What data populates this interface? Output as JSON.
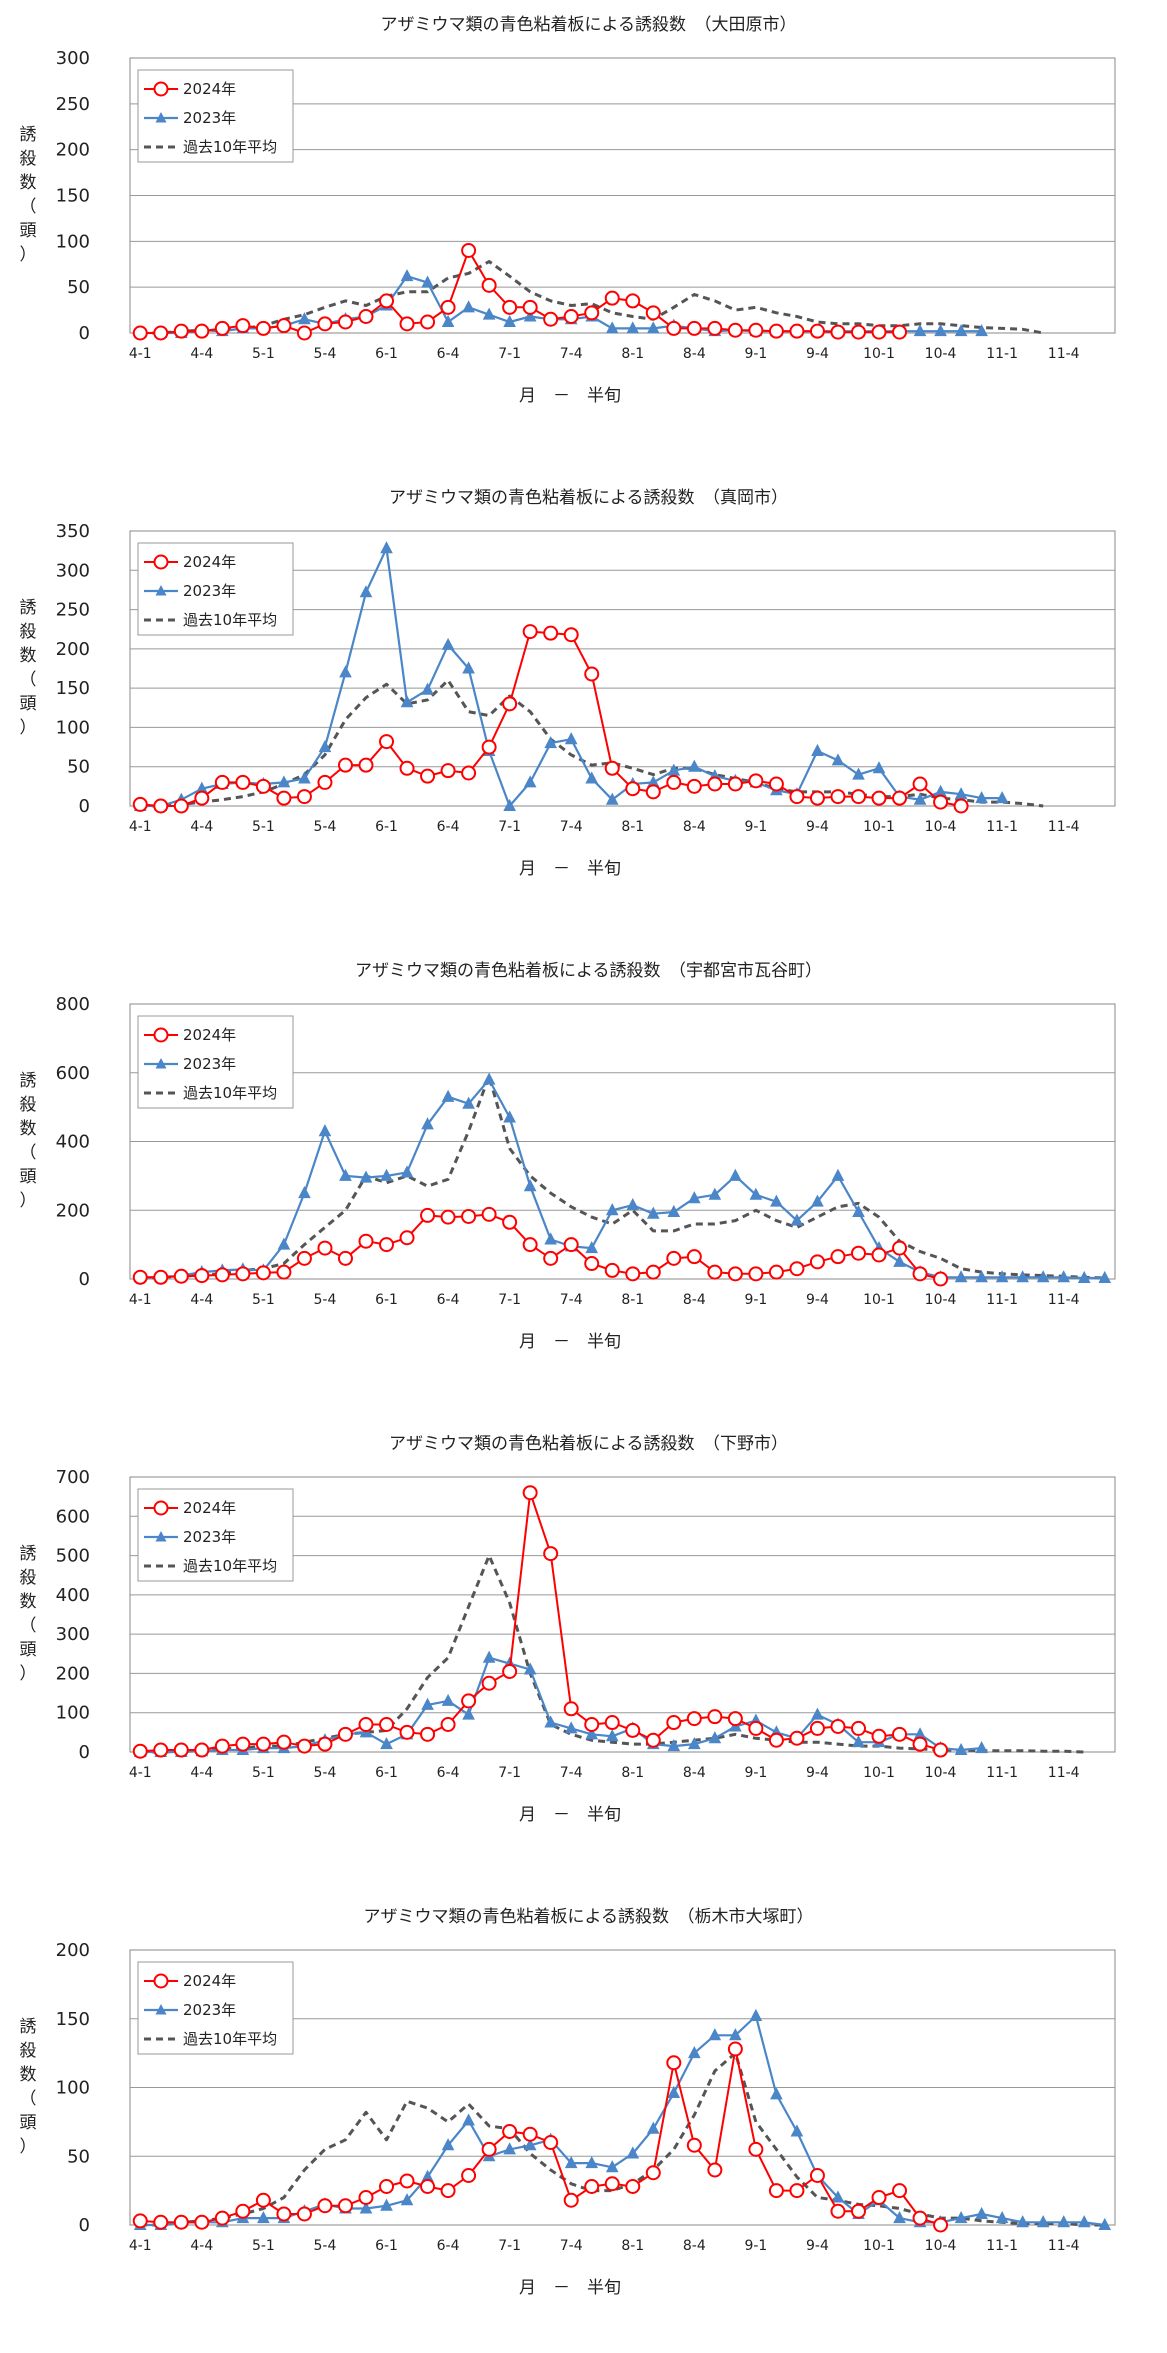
{
  "colors": {
    "y2024": "#ff0000",
    "y2023": "#4a86c8",
    "avg": "#555555",
    "grid": "#999999"
  },
  "chart_data": [
    {
      "type": "line",
      "title": "アザミウマ類の青色粘着板による誘殺数　（大田原市）",
      "xlabel": "月　－　半旬",
      "ylabel": [
        "誘",
        "殺",
        "数",
        "（",
        "頭",
        "）"
      ],
      "ylim": [
        0,
        300
      ],
      "yticks": [
        0,
        50,
        100,
        150,
        200,
        250,
        300
      ],
      "x_tick_labels": [
        "4-1",
        "4-4",
        "5-1",
        "5-4",
        "6-1",
        "6-4",
        "7-1",
        "7-4",
        "8-1",
        "8-4",
        "9-1",
        "9-4",
        "10-1",
        "10-4",
        "11-1",
        "11-4"
      ],
      "n_points": 48,
      "legend": "top-left",
      "series": [
        {
          "name": "2024年",
          "values": [
            0,
            0,
            2,
            2,
            5,
            8,
            5,
            8,
            0,
            10,
            12,
            18,
            35,
            10,
            12,
            28,
            90,
            52,
            28,
            28,
            15,
            18,
            22,
            38,
            35,
            22,
            5,
            5,
            5,
            3,
            3,
            2,
            2,
            2,
            1,
            1,
            1,
            1
          ]
        },
        {
          "name": "2023年",
          "values": [
            0,
            0,
            0,
            3,
            2,
            5,
            5,
            8,
            15,
            10,
            15,
            18,
            30,
            62,
            55,
            12,
            28,
            20,
            12,
            18,
            15,
            15,
            18,
            5,
            5,
            5,
            8,
            5,
            2,
            3,
            2,
            2,
            2,
            2,
            2,
            2,
            2,
            2,
            2,
            2,
            2,
            2
          ]
        },
        {
          "name": "過去10年平均",
          "values": [
            0,
            0,
            2,
            3,
            3,
            5,
            8,
            15,
            20,
            28,
            35,
            30,
            40,
            45,
            45,
            60,
            65,
            78,
            62,
            45,
            35,
            30,
            32,
            22,
            18,
            15,
            28,
            42,
            35,
            25,
            28,
            22,
            18,
            12,
            10,
            10,
            8,
            8,
            10,
            10,
            8,
            6,
            5,
            4,
            0
          ]
        }
      ]
    },
    {
      "type": "line",
      "title": "アザミウマ類の青色粘着板による誘殺数　（真岡市）",
      "xlabel": "月　－　半旬",
      "ylabel": [
        "誘",
        "殺",
        "数",
        "（",
        "頭",
        "）"
      ],
      "ylim": [
        0,
        350
      ],
      "yticks": [
        0,
        50,
        100,
        150,
        200,
        250,
        300,
        350
      ],
      "x_tick_labels": [
        "4-1",
        "4-4",
        "5-1",
        "5-4",
        "6-1",
        "6-4",
        "7-1",
        "7-4",
        "8-1",
        "8-4",
        "9-1",
        "9-4",
        "10-1",
        "10-4",
        "11-1",
        "11-4"
      ],
      "n_points": 48,
      "legend": "top-left",
      "series": [
        {
          "name": "2024年",
          "values": [
            2,
            0,
            0,
            10,
            30,
            30,
            25,
            10,
            12,
            30,
            52,
            52,
            82,
            48,
            38,
            45,
            42,
            75,
            130,
            222,
            220,
            218,
            168,
            48,
            22,
            18,
            30,
            25,
            28,
            28,
            32,
            28,
            12,
            10,
            12,
            12,
            10,
            10,
            28,
            5,
            0
          ]
        },
        {
          "name": "2023年",
          "values": [
            0,
            0,
            8,
            22,
            28,
            30,
            28,
            30,
            35,
            75,
            170,
            272,
            328,
            132,
            148,
            205,
            175,
            70,
            0,
            30,
            80,
            85,
            35,
            8,
            28,
            30,
            45,
            50,
            38,
            32,
            30,
            20,
            15,
            70,
            58,
            40,
            48,
            12,
            8,
            18,
            15,
            10,
            10
          ]
        },
        {
          "name": "過去10年平均",
          "values": [
            0,
            0,
            2,
            5,
            8,
            12,
            18,
            28,
            40,
            65,
            110,
            138,
            155,
            130,
            135,
            160,
            120,
            115,
            140,
            120,
            85,
            65,
            52,
            55,
            48,
            40,
            48,
            48,
            40,
            35,
            30,
            22,
            18,
            18,
            18,
            15,
            12,
            12,
            15,
            10,
            8,
            5,
            5,
            3,
            0
          ]
        }
      ]
    },
    {
      "type": "line",
      "title": "アザミウマ類の青色粘着板による誘殺数　（宇都宮市瓦谷町）",
      "xlabel": "月　－　半旬",
      "ylabel": [
        "誘",
        "殺",
        "数",
        "（",
        "頭",
        "）"
      ],
      "ylim": [
        0,
        800
      ],
      "yticks": [
        0,
        200,
        400,
        600,
        800
      ],
      "x_tick_labels": [
        "4-1",
        "4-4",
        "5-1",
        "5-4",
        "6-1",
        "6-4",
        "7-1",
        "7-4",
        "8-1",
        "8-4",
        "9-1",
        "9-4",
        "10-1",
        "10-4",
        "11-1",
        "11-4"
      ],
      "n_points": 48,
      "legend": "top-left",
      "series": [
        {
          "name": "2024年",
          "values": [
            5,
            5,
            8,
            10,
            12,
            15,
            18,
            20,
            60,
            90,
            60,
            110,
            100,
            120,
            185,
            180,
            182,
            188,
            165,
            100,
            60,
            100,
            45,
            25,
            15,
            20,
            60,
            65,
            20,
            15,
            15,
            20,
            30,
            50,
            65,
            75,
            70,
            90,
            15,
            0
          ]
        },
        {
          "name": "2023年",
          "values": [
            5,
            5,
            10,
            20,
            25,
            28,
            25,
            100,
            250,
            430,
            300,
            295,
            300,
            310,
            450,
            530,
            510,
            580,
            470,
            270,
            115,
            95,
            90,
            200,
            215,
            190,
            195,
            235,
            245,
            300,
            245,
            225,
            170,
            225,
            300,
            195,
            90,
            50,
            20,
            5,
            5,
            5,
            5,
            5,
            5,
            5,
            3,
            3
          ]
        },
        {
          "name": "過去10年平均",
          "values": [
            0,
            5,
            8,
            12,
            15,
            25,
            30,
            45,
            100,
            150,
            200,
            300,
            280,
            300,
            270,
            290,
            430,
            590,
            380,
            300,
            250,
            210,
            180,
            160,
            200,
            140,
            140,
            160,
            160,
            170,
            200,
            170,
            150,
            180,
            210,
            220,
            180,
            110,
            80,
            60,
            30,
            20,
            15,
            12,
            10,
            8,
            5,
            3
          ]
        }
      ]
    },
    {
      "type": "line",
      "title": "アザミウマ類の青色粘着板による誘殺数　（下野市）",
      "xlabel": "月　－　半旬",
      "ylabel": [
        "誘",
        "殺",
        "数",
        "（",
        "頭",
        "）"
      ],
      "ylim": [
        0,
        700
      ],
      "yticks": [
        0,
        100,
        200,
        300,
        400,
        500,
        600,
        700
      ],
      "x_tick_labels": [
        "4-1",
        "4-4",
        "5-1",
        "5-4",
        "6-1",
        "6-4",
        "7-1",
        "7-4",
        "8-1",
        "8-4",
        "9-1",
        "9-4",
        "10-1",
        "10-4",
        "11-1",
        "11-4"
      ],
      "n_points": 48,
      "legend": "top-left",
      "series": [
        {
          "name": "2024年",
          "values": [
            2,
            5,
            5,
            5,
            15,
            20,
            20,
            25,
            15,
            20,
            45,
            70,
            70,
            50,
            45,
            70,
            130,
            175,
            205,
            660,
            505,
            110,
            70,
            75,
            55,
            30,
            75,
            85,
            90,
            85,
            60,
            30,
            35,
            60,
            65,
            60,
            40,
            45,
            20,
            5
          ]
        },
        {
          "name": "2023年",
          "values": [
            0,
            0,
            0,
            2,
            5,
            5,
            10,
            10,
            15,
            30,
            45,
            50,
            20,
            45,
            120,
            130,
            95,
            240,
            225,
            210,
            75,
            60,
            45,
            40,
            60,
            20,
            15,
            20,
            35,
            65,
            80,
            50,
            35,
            95,
            70,
            25,
            25,
            45,
            45,
            10,
            5,
            10
          ]
        },
        {
          "name": "過去10年平均",
          "values": [
            0,
            0,
            2,
            5,
            8,
            10,
            15,
            15,
            25,
            35,
            45,
            50,
            55,
            110,
            190,
            240,
            370,
            500,
            380,
            200,
            70,
            45,
            30,
            25,
            20,
            20,
            25,
            30,
            35,
            45,
            35,
            30,
            25,
            25,
            20,
            15,
            15,
            10,
            8,
            5,
            5,
            3,
            3,
            3,
            2,
            2,
            0
          ]
        }
      ]
    },
    {
      "type": "line",
      "title": "アザミウマ類の青色粘着板による誘殺数　（栃木市大塚町）",
      "xlabel": "月　－　半旬",
      "ylabel": [
        "誘",
        "殺",
        "数",
        "（",
        "頭",
        "）"
      ],
      "ylim": [
        0,
        200
      ],
      "yticks": [
        0,
        50,
        100,
        150,
        200
      ],
      "x_tick_labels": [
        "4-1",
        "4-4",
        "5-1",
        "5-4",
        "6-1",
        "6-4",
        "7-1",
        "7-4",
        "8-1",
        "8-4",
        "9-1",
        "9-4",
        "10-1",
        "10-4",
        "11-1",
        "11-4"
      ],
      "n_points": 48,
      "legend": "top-left",
      "series": [
        {
          "name": "2024年",
          "values": [
            3,
            2,
            2,
            2,
            5,
            10,
            18,
            8,
            8,
            14,
            14,
            20,
            28,
            32,
            28,
            25,
            36,
            55,
            68,
            66,
            60,
            18,
            28,
            30,
            28,
            38,
            118,
            58,
            40,
            128,
            55,
            25,
            25,
            36,
            10,
            10,
            20,
            25,
            5,
            0
          ]
        },
        {
          "name": "2023年",
          "values": [
            0,
            0,
            2,
            2,
            2,
            5,
            5,
            5,
            10,
            15,
            12,
            12,
            14,
            18,
            35,
            58,
            76,
            50,
            55,
            58,
            62,
            45,
            45,
            42,
            52,
            70,
            96,
            125,
            138,
            138,
            152,
            95,
            68,
            36,
            20,
            8,
            18,
            5,
            2,
            2,
            5,
            8,
            5,
            2,
            2,
            2,
            2,
            0
          ]
        },
        {
          "name": "過去10年平均",
          "values": [
            0,
            0,
            2,
            3,
            5,
            8,
            12,
            20,
            40,
            55,
            62,
            82,
            62,
            90,
            85,
            75,
            88,
            72,
            70,
            52,
            40,
            30,
            25,
            25,
            30,
            40,
            55,
            80,
            112,
            125,
            75,
            55,
            35,
            20,
            18,
            15,
            14,
            12,
            8,
            5,
            5,
            3,
            2,
            1,
            1,
            1,
            0,
            0
          ]
        }
      ]
    }
  ]
}
